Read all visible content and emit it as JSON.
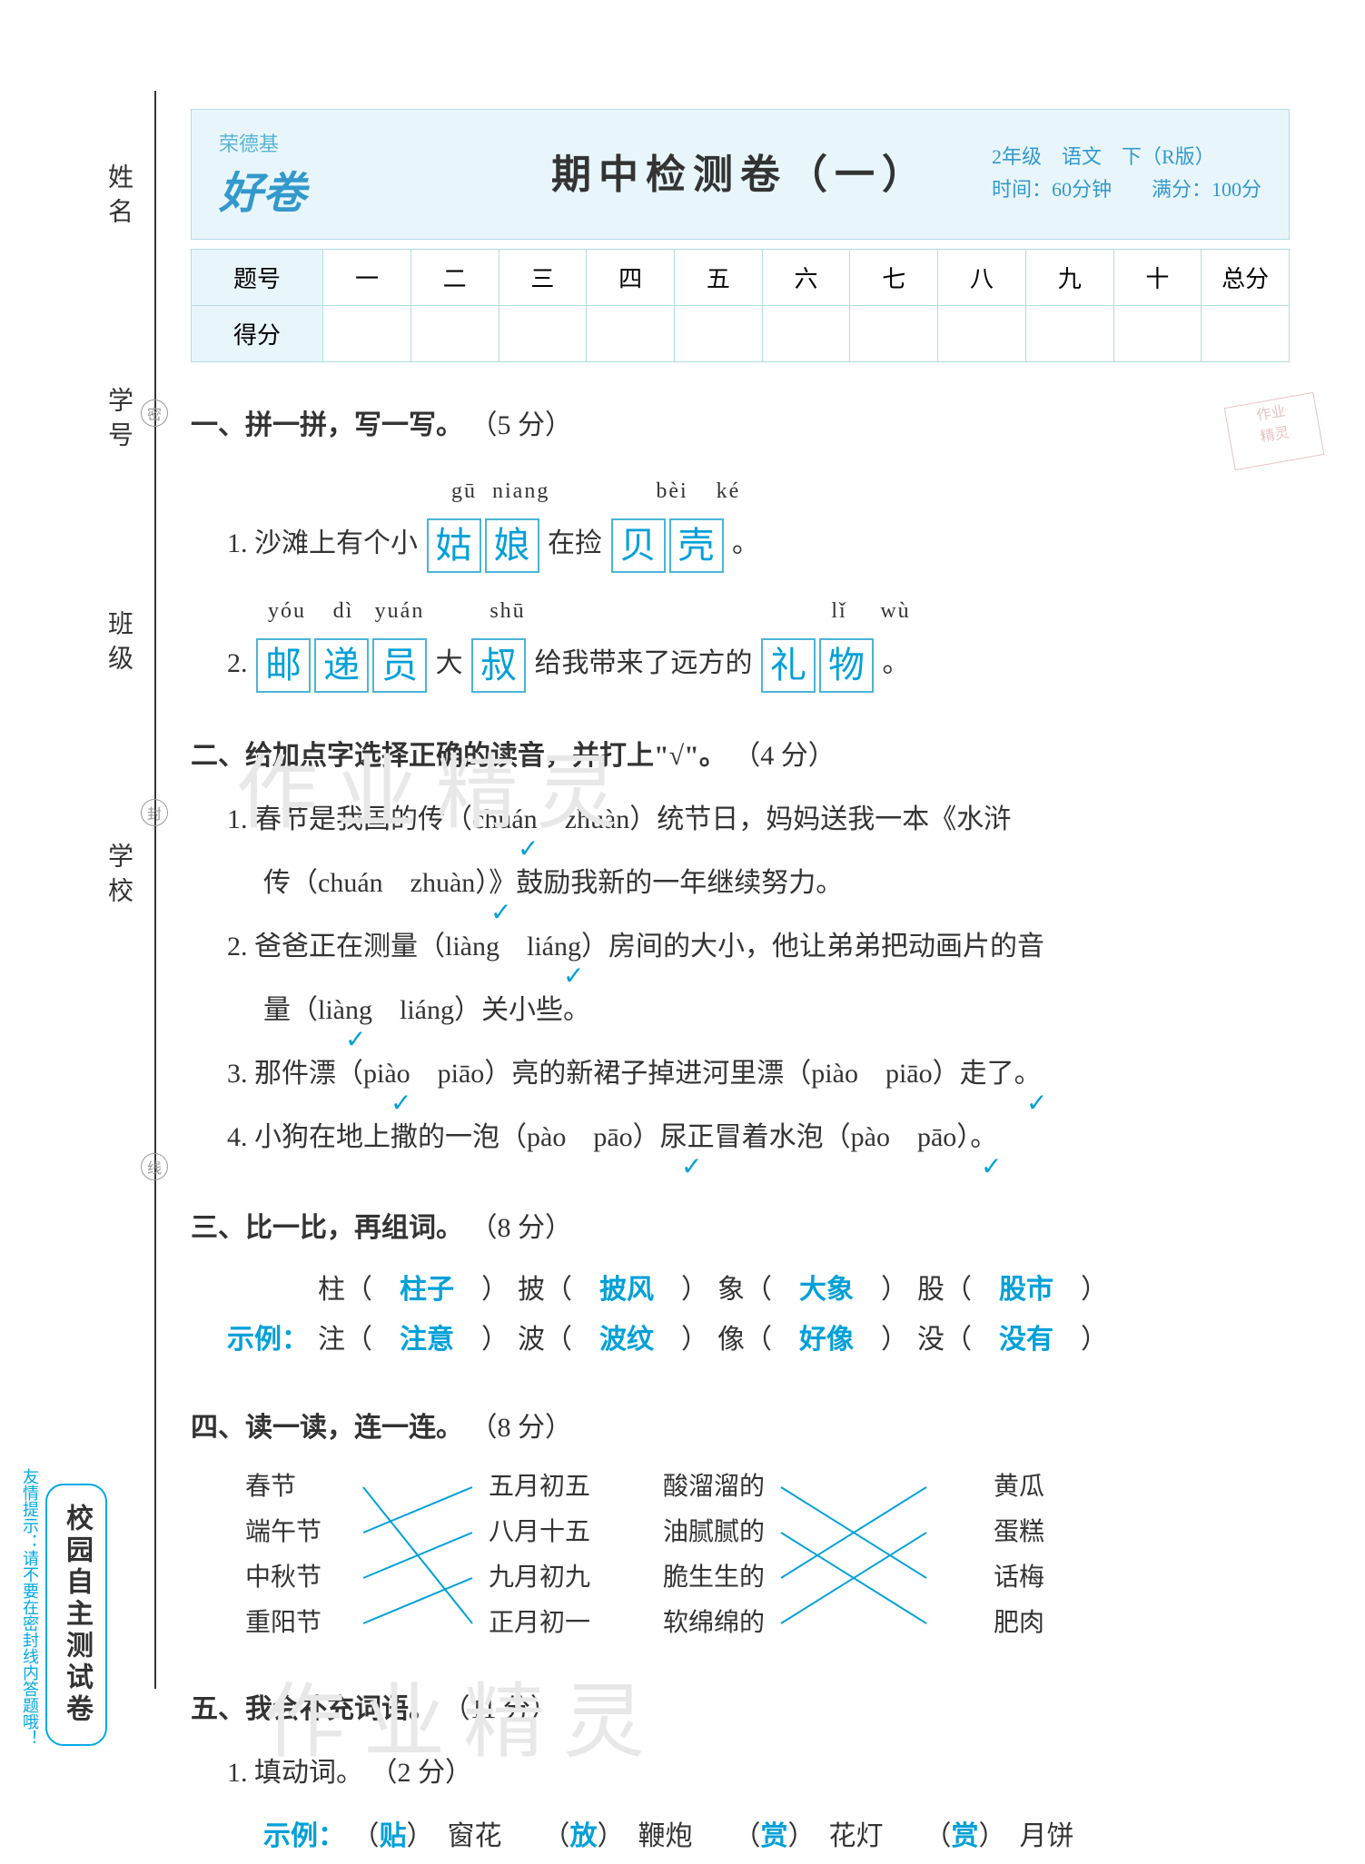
{
  "brand": "荣德基",
  "logo": "好卷",
  "title": "期中检测卷（一）",
  "meta_grade": "2年级　语文　下（R版）",
  "meta_time": "时间：60分钟　　满分：100分",
  "score_table": {
    "row1_label": "题号",
    "row2_label": "得分",
    "cols": [
      "一",
      "二",
      "三",
      "四",
      "五",
      "六",
      "七",
      "八",
      "九",
      "十",
      "总分"
    ]
  },
  "sidebar": {
    "labels": [
      "姓名",
      "学号",
      "班级",
      "学校"
    ],
    "circles": [
      "密",
      "封",
      "线"
    ]
  },
  "bottom_tag": "校园自主测试卷",
  "bottom_hint": "友情提示：请不要在密封线内答题哦！",
  "q1": {
    "title": "一、拼一拼，写一写。",
    "score": "（5 分）",
    "line1_pre": "1. 沙滩上有个小",
    "line1_mid": "在捡",
    "line1_end": "。",
    "pinyin1a": "gū",
    "pinyin1b": "niang",
    "pinyin1c": "bèi",
    "pinyin1d": "ké",
    "ans1a": "姑",
    "ans1b": "娘",
    "ans1c": "贝",
    "ans1d": "壳",
    "line2_num": "2.",
    "line2_mid1": "大",
    "line2_mid2": "给我带来了远方的",
    "line2_end": "。",
    "pinyin2a": "yóu",
    "pinyin2b": "dì",
    "pinyin2c": "yuán",
    "pinyin2d": "shū",
    "pinyin2e": "lǐ",
    "pinyin2f": "wù",
    "ans2a": "邮",
    "ans2b": "递",
    "ans2c": "员",
    "ans2d": "叔",
    "ans2e": "礼",
    "ans2f": "物"
  },
  "q2": {
    "title": "二、给加点字选择正确的读音，并打上\"√\"。",
    "score": "（4 分）",
    "line1": "1. 春节是我国的传（chuán　zhuàn）统节日，妈妈送我一本《水浒",
    "line1b": "传（chuán　zhuàn）》鼓励我新的一年继续努力。",
    "line2": "2. 爸爸正在测量（liàng　liáng）房间的大小，他让弟弟把动画片的音",
    "line2b": "量（liàng　liáng）关小些。",
    "line3": "3. 那件漂（piào　piāo）亮的新裙子掉进河里漂（piào　piāo）走了。",
    "line4": "4. 小狗在地上撒的一泡（pào　pāo）尿正冒着水泡（pào　pāo）。"
  },
  "q3": {
    "title": "三、比一比，再组词。",
    "score": "（8 分）",
    "example_label": "示例：",
    "pairs": [
      {
        "top_char": "柱",
        "top_ans": "柱子",
        "bot_char": "注",
        "bot_ans": "注意"
      },
      {
        "top_char": "披",
        "top_ans": "披风",
        "bot_char": "波",
        "bot_ans": "波纹"
      },
      {
        "top_char": "象",
        "top_ans": "大象",
        "bot_char": "像",
        "bot_ans": "好像"
      },
      {
        "top_char": "股",
        "top_ans": "股市",
        "bot_char": "没",
        "bot_ans": "没有"
      }
    ]
  },
  "q4": {
    "title": "四、读一读，连一连。",
    "score": "（8 分）",
    "group1": {
      "left": [
        "春节",
        "端午节",
        "中秋节",
        "重阳节"
      ],
      "right": [
        "五月初五",
        "八月十五",
        "九月初九",
        "正月初一"
      ],
      "connections": [
        [
          0,
          3
        ],
        [
          1,
          0
        ],
        [
          2,
          1
        ],
        [
          3,
          2
        ]
      ]
    },
    "group2": {
      "left": [
        "酸溜溜的",
        "油腻腻的",
        "脆生生的",
        "软绵绵的"
      ],
      "right": [
        "黄瓜",
        "蛋糕",
        "话梅",
        "肥肉"
      ],
      "connections": [
        [
          0,
          2
        ],
        [
          1,
          3
        ],
        [
          2,
          0
        ],
        [
          3,
          1
        ]
      ]
    }
  },
  "q5": {
    "title": "五、我会补充词语。",
    "score": "（11 分）",
    "sub1_title": "1. 填动词。",
    "sub1_score": "（2 分）",
    "example_label": "示例：",
    "items": [
      {
        "ans": "贴",
        "word": "窗花"
      },
      {
        "ans": "放",
        "word": "鞭炮"
      },
      {
        "ans": "赏",
        "word": "花灯"
      },
      {
        "ans": "赏",
        "word": "月饼"
      }
    ]
  },
  "watermarks": {
    "w1": "作业精灵",
    "w2": "作业精灵"
  },
  "colors": {
    "answer": "#00a0d8",
    "header_bg": "#e8f6fb",
    "border": "#b0dce8",
    "text": "#333333",
    "line_color": "#00a0d8"
  }
}
